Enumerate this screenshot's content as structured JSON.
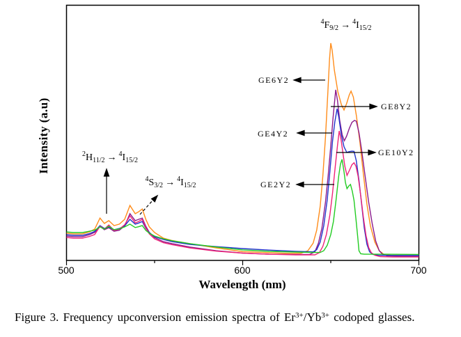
{
  "caption": {
    "pre": "Figure 3. Frequency upconversion emission spectra of Er",
    "sup1": "3+",
    "mid": "/Yb",
    "sup2": "3+",
    "post": " codoped glasses."
  },
  "transitions": {
    "f": {
      "sup1": "4",
      "term1": "F",
      "sub1": "9/2",
      "arrow": "→",
      "sup2": "4",
      "term2": "I",
      "sub2": "15/2"
    },
    "h": {
      "sup1": "2",
      "term1": "H",
      "sub1": "11/2",
      "arrow": "→",
      "sup2": "4",
      "term2": "I",
      "sub2": "15/2"
    },
    "s": {
      "sup1": "4",
      "term1": "S",
      "sub1": "3/2",
      "arrow": "→",
      "sup2": "4",
      "term2": "I",
      "sub2": "15/2"
    }
  },
  "chart_data": {
    "type": "line",
    "title": "",
    "xlabel": "Wavelength (nm)",
    "ylabel": "Intensity (a.u)",
    "x_range": [
      500,
      700
    ],
    "x_ticks_major": [
      500,
      600,
      700
    ],
    "x_ticks_minor": [
      550,
      650
    ],
    "x_tick_labels": [
      "500",
      "600",
      "700"
    ],
    "y_axis_note": "arbitrary units, no tick marks; values below are relative intensity 0-100",
    "grid": false,
    "legend_position": "in-plot arrow labels",
    "peak_assignments": {
      "green_band_520_545nm": "2H11/2 -> 4I15/2 and 4S3/2 -> 4I15/2",
      "red_band_640_680nm": "4F9/2 -> 4I15/2"
    },
    "series": [
      {
        "name": "GE6Y2",
        "color": "#FF8C1A",
        "points": [
          [
            500,
            11.6
          ],
          [
            504,
            11.3
          ],
          [
            509,
            11.3
          ],
          [
            513,
            12.2
          ],
          [
            516,
            13.5
          ],
          [
            519,
            18.6
          ],
          [
            521.5,
            16.1
          ],
          [
            524,
            17.4
          ],
          [
            527,
            15.1
          ],
          [
            530,
            15.8
          ],
          [
            533,
            18
          ],
          [
            536,
            24.4
          ],
          [
            539,
            20.6
          ],
          [
            541,
            21.5
          ],
          [
            543,
            22.8
          ],
          [
            545,
            18
          ],
          [
            547,
            14.5
          ],
          [
            550,
            11.9
          ],
          [
            555,
            9.3
          ],
          [
            560,
            8.2
          ],
          [
            570,
            6.8
          ],
          [
            585,
            4.8
          ],
          [
            600,
            3.1
          ],
          [
            615,
            2.6
          ],
          [
            625,
            2.3
          ],
          [
            633,
            2.3
          ],
          [
            637,
            3.5
          ],
          [
            640,
            7
          ],
          [
            642,
            13
          ],
          [
            644,
            24
          ],
          [
            645.5,
            38
          ],
          [
            647,
            56
          ],
          [
            648.3,
            76
          ],
          [
            649.3,
            92
          ],
          [
            650,
            99.4
          ],
          [
            650.8,
            96
          ],
          [
            652,
            87
          ],
          [
            654,
            77
          ],
          [
            656,
            71
          ],
          [
            657.5,
            68.5
          ],
          [
            659,
            71.5
          ],
          [
            660.5,
            75.5
          ],
          [
            661.5,
            77.2
          ],
          [
            662.8,
            74.5
          ],
          [
            664.5,
            66
          ],
          [
            666.5,
            54
          ],
          [
            668.5,
            39
          ],
          [
            670.5,
            25
          ],
          [
            672.5,
            15
          ],
          [
            675,
            7.5
          ],
          [
            677.5,
            3.5
          ],
          [
            680,
            1.9
          ],
          [
            684,
            1.4
          ],
          [
            692,
            1.3
          ],
          [
            700,
            1.3
          ]
        ]
      },
      {
        "name": "GE8Y2",
        "color": "#8B1A8B",
        "points": [
          [
            500,
            10.3
          ],
          [
            504,
            10
          ],
          [
            509,
            10
          ],
          [
            513,
            10.9
          ],
          [
            516,
            12
          ],
          [
            519,
            14.8
          ],
          [
            521.5,
            13.2
          ],
          [
            524,
            14.1
          ],
          [
            527,
            12.5
          ],
          [
            530,
            13
          ],
          [
            533,
            15
          ],
          [
            536,
            20.6
          ],
          [
            539,
            17.4
          ],
          [
            541,
            18
          ],
          [
            543,
            18.6
          ],
          [
            545,
            14.8
          ],
          [
            547,
            12
          ],
          [
            550,
            9.6
          ],
          [
            555,
            7.7
          ],
          [
            560,
            6.8
          ],
          [
            570,
            5.2
          ],
          [
            585,
            3.5
          ],
          [
            600,
            2.4
          ],
          [
            615,
            1.9
          ],
          [
            630,
            1.8
          ],
          [
            638,
            1.8
          ],
          [
            641,
            3
          ],
          [
            643,
            7
          ],
          [
            645,
            14
          ],
          [
            647,
            26
          ],
          [
            648.5,
            38
          ],
          [
            650,
            52
          ],
          [
            651.3,
            65
          ],
          [
            652.8,
            77.8
          ],
          [
            653.8,
            73
          ],
          [
            655,
            64
          ],
          [
            656.5,
            57
          ],
          [
            657.7,
            54.3
          ],
          [
            659,
            56.5
          ],
          [
            660.5,
            60
          ],
          [
            662,
            62.8
          ],
          [
            663.5,
            63.7
          ],
          [
            664.5,
            63.3
          ],
          [
            666,
            58
          ],
          [
            667.5,
            50
          ],
          [
            669.5,
            38
          ],
          [
            671.5,
            26
          ],
          [
            673.5,
            16
          ],
          [
            675.5,
            8
          ],
          [
            677.5,
            3.5
          ],
          [
            679.5,
            1.8
          ],
          [
            682,
            1.1
          ],
          [
            690,
            1
          ],
          [
            700,
            1
          ]
        ]
      },
      {
        "name": "GE4Y2",
        "color": "#2233CC",
        "points": [
          [
            500,
            10.9
          ],
          [
            504,
            10.6
          ],
          [
            509,
            10.6
          ],
          [
            513,
            11.4
          ],
          [
            516,
            12.4
          ],
          [
            519,
            15.1
          ],
          [
            521.5,
            13.8
          ],
          [
            524,
            14.5
          ],
          [
            527,
            13.2
          ],
          [
            530,
            13.8
          ],
          [
            533,
            15
          ],
          [
            536,
            18
          ],
          [
            539,
            15.8
          ],
          [
            541,
            16.3
          ],
          [
            543,
            17
          ],
          [
            545,
            13.8
          ],
          [
            547,
            11.9
          ],
          [
            550,
            10
          ],
          [
            555,
            8.7
          ],
          [
            560,
            7.7
          ],
          [
            570,
            6.4
          ],
          [
            585,
            5.4
          ],
          [
            600,
            4.5
          ],
          [
            615,
            3.8
          ],
          [
            630,
            3.2
          ],
          [
            640,
            3
          ],
          [
            642,
            4
          ],
          [
            644,
            7.5
          ],
          [
            646,
            15
          ],
          [
            648,
            27
          ],
          [
            649.5,
            40
          ],
          [
            651,
            54
          ],
          [
            652.3,
            63
          ],
          [
            653.6,
            69.1
          ],
          [
            654.6,
            65
          ],
          [
            656,
            57
          ],
          [
            657.5,
            51.5
          ],
          [
            659.1,
            48.9
          ],
          [
            660.5,
            49.3
          ],
          [
            662,
            49.5
          ],
          [
            663.2,
            49.4
          ],
          [
            664.5,
            45
          ],
          [
            666,
            36
          ],
          [
            667.5,
            25
          ],
          [
            669,
            14
          ],
          [
            670.5,
            6.5
          ],
          [
            672,
            3
          ],
          [
            674,
            1.8
          ],
          [
            677,
            1.4
          ],
          [
            685,
            1.3
          ],
          [
            700,
            1.3
          ]
        ]
      },
      {
        "name": "GE10Y2",
        "color": "#EE2277",
        "points": [
          [
            500,
            9.6
          ],
          [
            504,
            9.3
          ],
          [
            509,
            9.3
          ],
          [
            513,
            10.1
          ],
          [
            516,
            11
          ],
          [
            519,
            14.8
          ],
          [
            521.5,
            13.5
          ],
          [
            524,
            15.4
          ],
          [
            527,
            12.9
          ],
          [
            530,
            13.5
          ],
          [
            533,
            15.5
          ],
          [
            536,
            19.6
          ],
          [
            539,
            16.4
          ],
          [
            541,
            17
          ],
          [
            543,
            18
          ],
          [
            545,
            14
          ],
          [
            547,
            11.3
          ],
          [
            550,
            9
          ],
          [
            555,
            7.2
          ],
          [
            560,
            6.3
          ],
          [
            570,
            4.8
          ],
          [
            585,
            3.3
          ],
          [
            600,
            2.4
          ],
          [
            615,
            1.9
          ],
          [
            630,
            1.6
          ],
          [
            641,
            1.6
          ],
          [
            643.5,
            2.6
          ],
          [
            645.5,
            5.5
          ],
          [
            647.5,
            11
          ],
          [
            649.5,
            20
          ],
          [
            651,
            30
          ],
          [
            652.5,
            42
          ],
          [
            653.8,
            52
          ],
          [
            654.8,
            58.8
          ],
          [
            655.8,
            55
          ],
          [
            657,
            48
          ],
          [
            658,
            42.5
          ],
          [
            659.2,
            38.3
          ],
          [
            660.5,
            40.5
          ],
          [
            662,
            43.2
          ],
          [
            663.2,
            44.1
          ],
          [
            664.3,
            42.5
          ],
          [
            665.5,
            38
          ],
          [
            667,
            29
          ],
          [
            668.5,
            19
          ],
          [
            670,
            10.5
          ],
          [
            671.5,
            5
          ],
          [
            673,
            2.6
          ],
          [
            675,
            1.4
          ],
          [
            678,
            0.8
          ],
          [
            685,
            0.6
          ],
          [
            700,
            0.6
          ]
        ]
      },
      {
        "name": "GE2Y2",
        "color": "#22CC22",
        "points": [
          [
            500,
            12.2
          ],
          [
            504,
            11.9
          ],
          [
            509,
            11.9
          ],
          [
            513,
            12.5
          ],
          [
            516,
            13
          ],
          [
            519,
            14.5
          ],
          [
            521.5,
            13.5
          ],
          [
            524,
            14.8
          ],
          [
            527,
            13.2
          ],
          [
            530,
            13.6
          ],
          [
            533,
            14.5
          ],
          [
            536,
            15.8
          ],
          [
            539,
            14.2
          ],
          [
            541,
            14.6
          ],
          [
            543,
            15.1
          ],
          [
            545,
            12.9
          ],
          [
            547,
            11.6
          ],
          [
            550,
            10.3
          ],
          [
            555,
            9
          ],
          [
            560,
            8.1
          ],
          [
            570,
            6.8
          ],
          [
            585,
            5.2
          ],
          [
            600,
            3.9
          ],
          [
            615,
            3.2
          ],
          [
            630,
            2.9
          ],
          [
            640,
            2.7
          ],
          [
            644,
            2.7
          ],
          [
            646,
            3.5
          ],
          [
            648,
            6
          ],
          [
            650,
            11
          ],
          [
            651.5,
            17
          ],
          [
            653,
            27
          ],
          [
            654.5,
            38
          ],
          [
            655.5,
            43.5
          ],
          [
            656.4,
            45.7
          ],
          [
            657.5,
            40
          ],
          [
            658.3,
            35
          ],
          [
            659.2,
            32.2
          ],
          [
            660.3,
            33.5
          ],
          [
            661.2,
            34.1
          ],
          [
            662.2,
            31
          ],
          [
            663.2,
            26.7
          ],
          [
            664.3,
            18
          ],
          [
            665.2,
            10.5
          ],
          [
            666,
            3.5
          ],
          [
            667,
            2.1
          ],
          [
            669,
            1.9
          ],
          [
            680,
            1.9
          ],
          [
            700,
            1.8
          ]
        ]
      }
    ]
  }
}
